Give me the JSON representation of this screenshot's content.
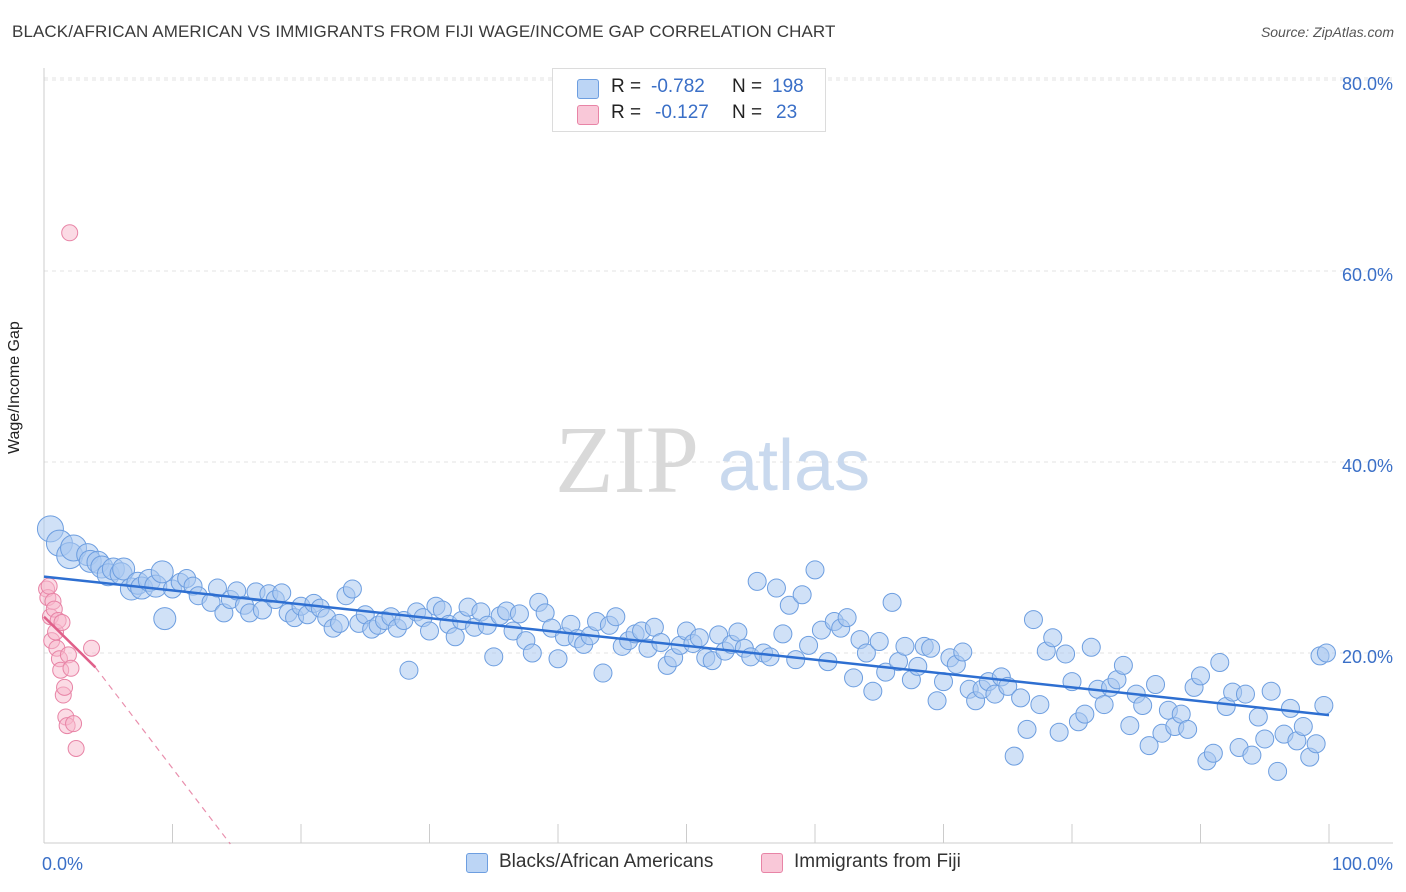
{
  "title": "BLACK/AFRICAN AMERICAN VS IMMIGRANTS FROM FIJI WAGE/INCOME GAP CORRELATION CHART",
  "source": "Source: ZipAtlas.com",
  "watermark": {
    "zip": "ZIP",
    "atlas": "atlas"
  },
  "legend": {
    "series1": {
      "r_label": "R =",
      "r_value": "-0.782",
      "n_label": "N =",
      "n_value": "198"
    },
    "series2": {
      "r_label": "R =",
      "r_value": "-0.127",
      "n_label": "N =",
      "n_value": "23"
    }
  },
  "colors": {
    "blue_fill": "#a9c8f0",
    "blue_stroke": "#6d9ee0",
    "blue_line": "#2e6fd1",
    "pink_fill": "#f7b8cc",
    "pink_stroke": "#e884a6",
    "pink_line": "#e0608a",
    "tick_label": "#3a6fc7"
  },
  "chart_data": {
    "type": "scatter",
    "title": "BLACK/AFRICAN AMERICAN VS IMMIGRANTS FROM FIJI WAGE/INCOME GAP CORRELATION CHART",
    "xlabel": "",
    "ylabel": "Wage/Income Gap",
    "xlim": [
      0,
      100
    ],
    "ylim": [
      0,
      82
    ],
    "x_tick_labels": [
      "0.0%",
      "100.0%"
    ],
    "y_ticks": [
      20,
      40,
      60,
      80
    ],
    "y_tick_labels": [
      "20.0%",
      "40.0%",
      "60.0%",
      "80.0%"
    ],
    "series": [
      {
        "name": "Blacks/African Americans",
        "R": -0.782,
        "N": 198,
        "trend": {
          "x": [
            0,
            100
          ],
          "y": [
            28.0,
            13.5
          ]
        },
        "points": [
          [
            0.5,
            33.0
          ],
          [
            1.2,
            31.5
          ],
          [
            2.0,
            30.2
          ],
          [
            2.3,
            31.0
          ],
          [
            3.4,
            30.3
          ],
          [
            3.6,
            29.6
          ],
          [
            4.2,
            29.5
          ],
          [
            4.5,
            29.0
          ],
          [
            5.0,
            28.2
          ],
          [
            5.4,
            28.8
          ],
          [
            6.0,
            28.3
          ],
          [
            6.2,
            28.8
          ],
          [
            6.8,
            26.7
          ],
          [
            7.3,
            27.3
          ],
          [
            7.6,
            26.8
          ],
          [
            8.2,
            27.6
          ],
          [
            8.7,
            27.0
          ],
          [
            9.2,
            28.5
          ],
          [
            9.4,
            23.6
          ],
          [
            10.0,
            26.7
          ],
          [
            10.6,
            27.4
          ],
          [
            11.1,
            27.8
          ],
          [
            11.6,
            27.0
          ],
          [
            12.0,
            26.0
          ],
          [
            13.0,
            25.3
          ],
          [
            13.5,
            26.8
          ],
          [
            14.0,
            24.2
          ],
          [
            14.5,
            25.6
          ],
          [
            15.0,
            26.5
          ],
          [
            15.6,
            25.0
          ],
          [
            16.0,
            24.2
          ],
          [
            16.5,
            26.4
          ],
          [
            17.0,
            24.5
          ],
          [
            17.5,
            26.2
          ],
          [
            18.0,
            25.6
          ],
          [
            18.5,
            26.3
          ],
          [
            19.0,
            24.2
          ],
          [
            19.5,
            23.7
          ],
          [
            20.0,
            24.9
          ],
          [
            20.5,
            24.0
          ],
          [
            21.0,
            25.2
          ],
          [
            21.5,
            24.7
          ],
          [
            22.0,
            23.7
          ],
          [
            22.5,
            22.6
          ],
          [
            23.0,
            23.1
          ],
          [
            23.5,
            26.0
          ],
          [
            24.0,
            26.7
          ],
          [
            24.5,
            23.1
          ],
          [
            25.0,
            24.0
          ],
          [
            25.5,
            22.5
          ],
          [
            26.0,
            22.9
          ],
          [
            26.5,
            23.4
          ],
          [
            27.0,
            23.8
          ],
          [
            27.5,
            22.6
          ],
          [
            28.0,
            23.4
          ],
          [
            28.4,
            18.2
          ],
          [
            29.0,
            24.3
          ],
          [
            29.5,
            23.7
          ],
          [
            30.0,
            22.3
          ],
          [
            30.5,
            24.9
          ],
          [
            31.0,
            24.5
          ],
          [
            31.5,
            23.0
          ],
          [
            32.0,
            21.7
          ],
          [
            32.5,
            23.4
          ],
          [
            33.0,
            24.8
          ],
          [
            33.5,
            22.7
          ],
          [
            34.0,
            24.3
          ],
          [
            34.5,
            22.9
          ],
          [
            35.0,
            19.6
          ],
          [
            35.5,
            23.9
          ],
          [
            36.0,
            24.4
          ],
          [
            36.5,
            22.3
          ],
          [
            37.0,
            24.1
          ],
          [
            37.5,
            21.3
          ],
          [
            38.0,
            20.0
          ],
          [
            38.5,
            25.3
          ],
          [
            39.0,
            24.2
          ],
          [
            39.5,
            22.6
          ],
          [
            40.0,
            19.4
          ],
          [
            40.5,
            21.7
          ],
          [
            41.0,
            23.0
          ],
          [
            41.5,
            21.5
          ],
          [
            42.0,
            20.9
          ],
          [
            42.5,
            21.8
          ],
          [
            43.0,
            23.3
          ],
          [
            43.5,
            17.9
          ],
          [
            44.0,
            22.9
          ],
          [
            44.5,
            23.8
          ],
          [
            45.0,
            20.7
          ],
          [
            45.5,
            21.3
          ],
          [
            46.0,
            22.0
          ],
          [
            46.5,
            22.3
          ],
          [
            47.0,
            20.5
          ],
          [
            47.5,
            22.7
          ],
          [
            48.0,
            21.1
          ],
          [
            48.5,
            18.7
          ],
          [
            49.0,
            19.5
          ],
          [
            49.5,
            20.8
          ],
          [
            50.0,
            22.3
          ],
          [
            50.5,
            21.0
          ],
          [
            51.0,
            21.6
          ],
          [
            51.5,
            19.5
          ],
          [
            52.0,
            19.2
          ],
          [
            52.5,
            21.9
          ],
          [
            53.0,
            20.2
          ],
          [
            53.5,
            20.9
          ],
          [
            54.0,
            22.2
          ],
          [
            54.5,
            20.5
          ],
          [
            55.0,
            19.6
          ],
          [
            55.5,
            27.5
          ],
          [
            56.0,
            20.0
          ],
          [
            56.5,
            19.6
          ],
          [
            57.0,
            26.8
          ],
          [
            57.5,
            22.0
          ],
          [
            58.0,
            25.0
          ],
          [
            58.5,
            19.3
          ],
          [
            59.0,
            26.1
          ],
          [
            59.5,
            20.8
          ],
          [
            60.0,
            28.7
          ],
          [
            60.5,
            22.4
          ],
          [
            61.0,
            19.1
          ],
          [
            61.5,
            23.3
          ],
          [
            62.0,
            22.6
          ],
          [
            62.5,
            23.7
          ],
          [
            63.0,
            17.4
          ],
          [
            63.5,
            21.4
          ],
          [
            64.0,
            20.0
          ],
          [
            64.5,
            16.0
          ],
          [
            65.0,
            21.2
          ],
          [
            65.5,
            18.0
          ],
          [
            66.0,
            25.3
          ],
          [
            66.5,
            19.1
          ],
          [
            67.0,
            20.7
          ],
          [
            67.5,
            17.2
          ],
          [
            68.0,
            18.6
          ],
          [
            68.5,
            20.7
          ],
          [
            69.0,
            20.5
          ],
          [
            69.5,
            15.0
          ],
          [
            70.0,
            17.0
          ],
          [
            70.5,
            19.5
          ],
          [
            71.0,
            18.8
          ],
          [
            71.5,
            20.1
          ],
          [
            72.0,
            16.2
          ],
          [
            72.5,
            15.0
          ],
          [
            73.0,
            16.2
          ],
          [
            73.5,
            17.0
          ],
          [
            74.0,
            15.7
          ],
          [
            74.5,
            17.5
          ],
          [
            75.0,
            16.5
          ],
          [
            75.5,
            9.2
          ],
          [
            76.0,
            15.3
          ],
          [
            76.5,
            12.0
          ],
          [
            77.0,
            23.5
          ],
          [
            77.5,
            14.6
          ],
          [
            78.0,
            20.2
          ],
          [
            78.5,
            21.6
          ],
          [
            79.0,
            11.7
          ],
          [
            79.5,
            19.9
          ],
          [
            80.0,
            17.0
          ],
          [
            80.5,
            12.8
          ],
          [
            81.0,
            13.6
          ],
          [
            81.5,
            20.6
          ],
          [
            82.0,
            16.2
          ],
          [
            82.5,
            14.6
          ],
          [
            83.0,
            16.4
          ],
          [
            83.5,
            17.2
          ],
          [
            84.0,
            18.7
          ],
          [
            84.5,
            12.4
          ],
          [
            85.0,
            15.7
          ],
          [
            85.5,
            14.5
          ],
          [
            86.0,
            10.3
          ],
          [
            86.5,
            16.7
          ],
          [
            87.0,
            11.6
          ],
          [
            87.5,
            14.0
          ],
          [
            88.0,
            12.3
          ],
          [
            88.5,
            13.6
          ],
          [
            89.0,
            12.0
          ],
          [
            89.5,
            16.4
          ],
          [
            90.0,
            17.6
          ],
          [
            90.5,
            8.7
          ],
          [
            91.0,
            9.5
          ],
          [
            91.5,
            19.0
          ],
          [
            92.0,
            14.4
          ],
          [
            92.5,
            15.9
          ],
          [
            93.0,
            10.1
          ],
          [
            93.5,
            15.7
          ],
          [
            94.0,
            9.3
          ],
          [
            94.5,
            13.3
          ],
          [
            95.0,
            11.0
          ],
          [
            95.5,
            16.0
          ],
          [
            96.0,
            7.6
          ],
          [
            96.5,
            11.5
          ],
          [
            97.0,
            14.2
          ],
          [
            97.5,
            10.8
          ],
          [
            98.0,
            12.3
          ],
          [
            98.5,
            9.1
          ],
          [
            99.0,
            10.5
          ],
          [
            99.3,
            19.7
          ],
          [
            99.6,
            14.5
          ],
          [
            99.8,
            20.0
          ]
        ]
      },
      {
        "name": "Immigrants from Fiji",
        "R": -0.127,
        "N": 23,
        "trend": {
          "x": [
            0.0,
            4.0
          ],
          "y": [
            23.8,
            18.5
          ],
          "dashed_to": {
            "x": 14.5,
            "y": 0
          }
        },
        "points": [
          [
            0.2,
            26.7
          ],
          [
            0.3,
            25.8
          ],
          [
            0.4,
            27.0
          ],
          [
            0.5,
            23.8
          ],
          [
            0.6,
            21.3
          ],
          [
            0.7,
            25.4
          ],
          [
            0.8,
            24.6
          ],
          [
            0.9,
            22.2
          ],
          [
            1.0,
            20.5
          ],
          [
            1.1,
            23.4
          ],
          [
            1.2,
            19.4
          ],
          [
            1.3,
            18.2
          ],
          [
            1.4,
            23.2
          ],
          [
            1.5,
            15.6
          ],
          [
            1.6,
            16.4
          ],
          [
            1.7,
            13.3
          ],
          [
            1.8,
            12.4
          ],
          [
            1.9,
            19.8
          ],
          [
            2.0,
            64.0
          ],
          [
            2.1,
            18.4
          ],
          [
            2.3,
            12.6
          ],
          [
            2.5,
            10.0
          ],
          [
            3.7,
            20.5
          ]
        ]
      }
    ]
  },
  "bottom_legend": {
    "series1": "Blacks/African Americans",
    "series2": "Immigrants from Fiji"
  }
}
